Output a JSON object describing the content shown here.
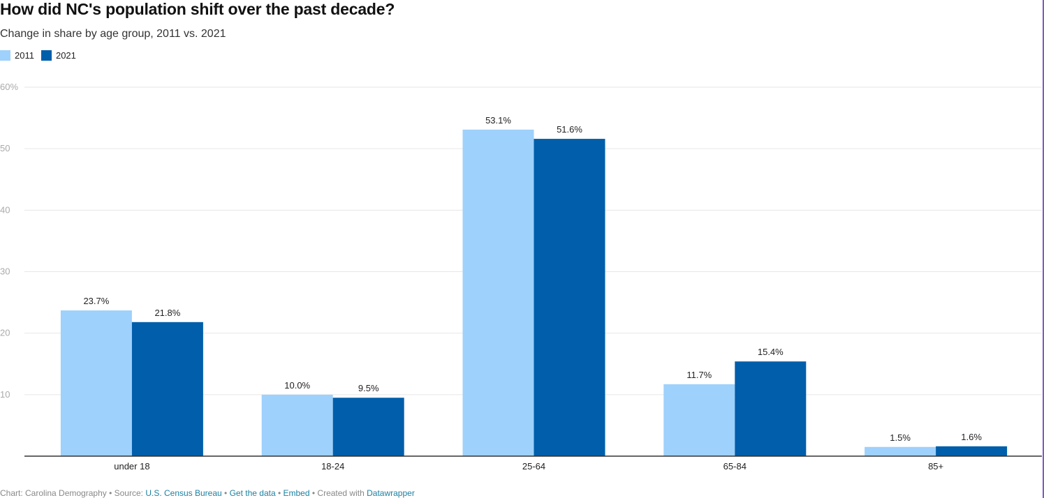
{
  "colors": {
    "series_2011": "#9ed1fc",
    "series_2021": "#005eab",
    "grid": "#e6e6e6",
    "axis": "#333333",
    "tick": "#aaaaaa",
    "link": "#1d81a2"
  },
  "footer": {
    "chart_label": "Chart: Carolina Demography",
    "sep1": " • Source: ",
    "source_link": "U.S. Census Bureau",
    "sep2": " • ",
    "get_data_link": "Get the data",
    "sep3": " • ",
    "embed_link": "Embed",
    "sep4": " • Created with ",
    "datawrapper_link": "Datawrapper"
  },
  "chart_data": {
    "type": "bar",
    "title": "How did NC's population shift over the past decade?",
    "subtitle": "Change in share by age group, 2011 vs. 2021",
    "categories": [
      "under 18",
      "18-24",
      "25-64",
      "65-84",
      "85+"
    ],
    "series": [
      {
        "name": "2011",
        "values": [
          23.7,
          10.0,
          53.1,
          11.7,
          1.5
        ],
        "labels": [
          "23.7%",
          "10.0%",
          "53.1%",
          "11.7%",
          "1.5%"
        ]
      },
      {
        "name": "2021",
        "values": [
          21.8,
          9.5,
          51.6,
          15.4,
          1.6
        ],
        "labels": [
          "21.8%",
          "9.5%",
          "51.6%",
          "15.4%",
          "1.6%"
        ]
      }
    ],
    "ylim": [
      0,
      60
    ],
    "yticks": [
      10,
      20,
      30,
      40,
      50,
      60
    ],
    "ytick_labels": [
      "10",
      "20",
      "30",
      "40",
      "50",
      "60%"
    ],
    "grid": true,
    "legend_position": "top-left"
  }
}
